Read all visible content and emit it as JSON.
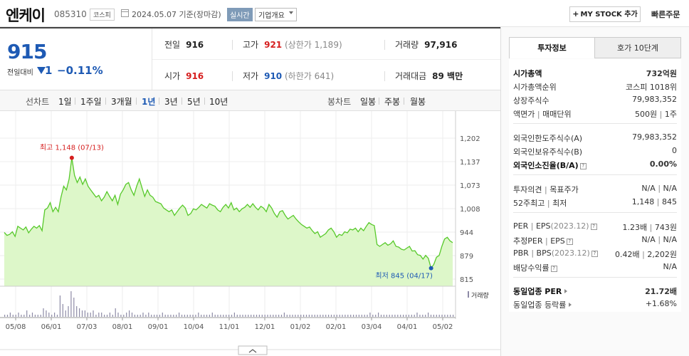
{
  "header": {
    "name": "엔케이",
    "code": "085310",
    "market": "코스피",
    "date": "2024.05.07 기준(장마감)",
    "realtime": "실시간",
    "company_overview": "기업개요",
    "mystock": "MY STOCK 추가",
    "mystock_plus": "+",
    "quick_order": "빠른주문"
  },
  "price": {
    "current": "915",
    "prev_label": "전일대비",
    "change": "1",
    "change_pct": "−0.11%"
  },
  "quotes": {
    "prev_close_label": "전일",
    "prev_close": "916",
    "high_label": "고가",
    "high": "921",
    "upper_limit": "(상한가 1,189)",
    "volume_label": "거래량",
    "volume": "97,916",
    "open_label": "시가",
    "open": "916",
    "low_label": "저가",
    "low": "910",
    "lower_limit": "(하한가 641)",
    "amount_label": "거래대금",
    "amount": "89 백만"
  },
  "period": {
    "line_label": "선차트",
    "line_items": [
      "1일",
      "1주일",
      "3개월",
      "1년",
      "3년",
      "5년",
      "10년"
    ],
    "active": "1년",
    "candle_label": "봉차트",
    "candle_items": [
      "일봉",
      "주봉",
      "월봉"
    ]
  },
  "chart_data": {
    "type": "area",
    "title": "",
    "y_ticks": [
      "1,202",
      "1,137",
      "1,073",
      "1,008",
      "944",
      "879",
      "815"
    ],
    "ylim": [
      815,
      1202
    ],
    "x_ticks": [
      "05/08",
      "06/01",
      "07/03",
      "08/01",
      "09/01",
      "10/04",
      "11/01",
      "12/01",
      "01/02",
      "02/01",
      "03/04",
      "04/01",
      "05/02"
    ],
    "high_label": "최고 1,148 (07/13)",
    "low_label": "최저 845 (04/17)",
    "volume_legend": "거래량",
    "series": [
      {
        "values": [
          943,
          935,
          938,
          945,
          932,
          960,
          955,
          950,
          958,
          942,
          952,
          960,
          955,
          962,
          948,
          1005,
          1010,
          1025,
          1000,
          1012,
          1000,
          1040,
          1070,
          1060,
          1090,
          1148,
          1100,
          1080,
          1095,
          1075,
          1090,
          1070,
          1060,
          1050,
          1040,
          1045,
          1030,
          1040,
          1055,
          1042,
          1030,
          1045,
          1020,
          1048,
          1060,
          1075,
          1080,
          1060,
          1045,
          1070,
          1090,
          1065,
          1042,
          1060,
          1045,
          1040,
          1028,
          1025,
          1022,
          1010,
          1005,
          1000,
          1005,
          990,
          1000,
          1010,
          1018,
          1010,
          990,
          995,
          1008,
          1005,
          1012,
          1020,
          1015,
          1010,
          1022,
          1018,
          1015,
          1005,
          1000,
          1012,
          1020,
          1010,
          1025,
          1005,
          1010,
          1000,
          1008,
          1012,
          1020,
          1012,
          1022,
          1012,
          1005,
          1015,
          1010,
          1000,
          1020,
          1010,
          995,
          985,
          1000,
          1003,
          990,
          980,
          985,
          990,
          980,
          972,
          965,
          960,
          955,
          958,
          948,
          940,
          945,
          930,
          935,
          940,
          950,
          955,
          945,
          930,
          938,
          935,
          945,
          942,
          952,
          950,
          955,
          945,
          955,
          948,
          960,
          970,
          965,
          962,
          910,
          905,
          910,
          915,
          908,
          912,
          920,
          905,
          903,
          897,
          895,
          900,
          905,
          892,
          893,
          882,
          880,
          870,
          880,
          872,
          845,
          855,
          875,
          880,
          905,
          925,
          930,
          920,
          915
        ]
      }
    ],
    "volume_values": [
      1,
      1,
      2,
      1,
      1,
      2,
      1,
      1,
      3,
      1,
      2,
      1,
      1,
      1,
      4,
      3,
      2,
      1,
      2,
      1,
      10,
      6,
      3,
      5,
      12,
      9,
      5,
      4,
      3,
      3,
      2,
      2,
      3,
      1,
      2,
      2,
      1,
      1,
      2,
      1,
      4,
      2,
      1,
      1,
      2,
      3,
      2,
      1,
      1,
      1,
      2,
      1,
      2,
      1,
      1,
      1,
      1,
      2,
      1,
      1,
      1,
      1,
      1,
      2,
      1,
      1,
      1,
      1,
      1,
      1,
      2,
      1,
      1,
      1,
      1,
      2,
      1,
      1,
      1,
      1,
      1,
      1,
      1,
      2,
      1,
      1,
      1,
      1,
      1,
      1,
      1,
      1,
      1,
      1,
      1,
      1,
      1,
      1,
      1,
      1,
      1,
      2,
      1,
      1,
      1,
      1,
      1,
      1,
      1,
      1,
      1,
      1,
      1,
      1,
      1,
      1,
      1,
      1,
      1,
      1,
      1,
      1,
      1,
      1,
      1,
      1,
      1,
      1,
      1,
      1,
      1,
      1,
      2,
      1,
      1,
      2,
      1,
      1,
      1,
      1,
      1,
      1,
      1,
      1,
      1,
      1,
      1,
      1,
      1,
      2,
      1,
      1,
      1,
      2,
      1,
      1,
      1,
      1,
      1,
      1,
      1,
      1,
      1
    ]
  },
  "right_panel": {
    "tab_active": "투자정보",
    "tab_inactive": "호가 10단계",
    "rows": {
      "market_cap_label": "시가총액",
      "market_cap": "732억원",
      "market_cap_rank_label": "시가총액순위",
      "market_cap_rank": "코스피 1018위",
      "shares_label": "상장주식수",
      "shares": "79,983,352",
      "par_label": "액면가",
      "par_sep": "|",
      "unit_label": "매매단위",
      "par_unit": "500원",
      "unit": "1주",
      "foreign_limit_label": "외국인한도주식수(A)",
      "foreign_limit": "79,983,352",
      "foreign_hold_label": "외국인보유주식수(B)",
      "foreign_hold": "0",
      "foreign_ratio_label": "외국인소진율(B/A)",
      "foreign_ratio": "0.00%",
      "opinion_label": "투자의견",
      "target_label": "목표주가",
      "opinion": "N/A",
      "target": "N/A",
      "w52_high_label": "52주최고",
      "w52_low_label": "최저",
      "w52_high": "1,148",
      "w52_low": "845",
      "per_label": "PER",
      "eps_label": "EPS",
      "eps_year": "(2023.12)",
      "per": "1.23배",
      "eps": "743원",
      "est_per_label": "추정PER",
      "est_eps_label": "EPS",
      "est_per": "N/A",
      "est_eps": "N/A",
      "pbr_label": "PBR",
      "bps_label": "BPS",
      "bps_year": "(2023.12)",
      "pbr": "0.42배",
      "bps": "2,202원",
      "div_label": "배당수익률",
      "div": "N/A",
      "sector_per_label": "동일업종 PER",
      "sector_per": "21.72배",
      "sector_change_label": "동일업종 등락률",
      "sector_change": "+1.68%"
    }
  }
}
